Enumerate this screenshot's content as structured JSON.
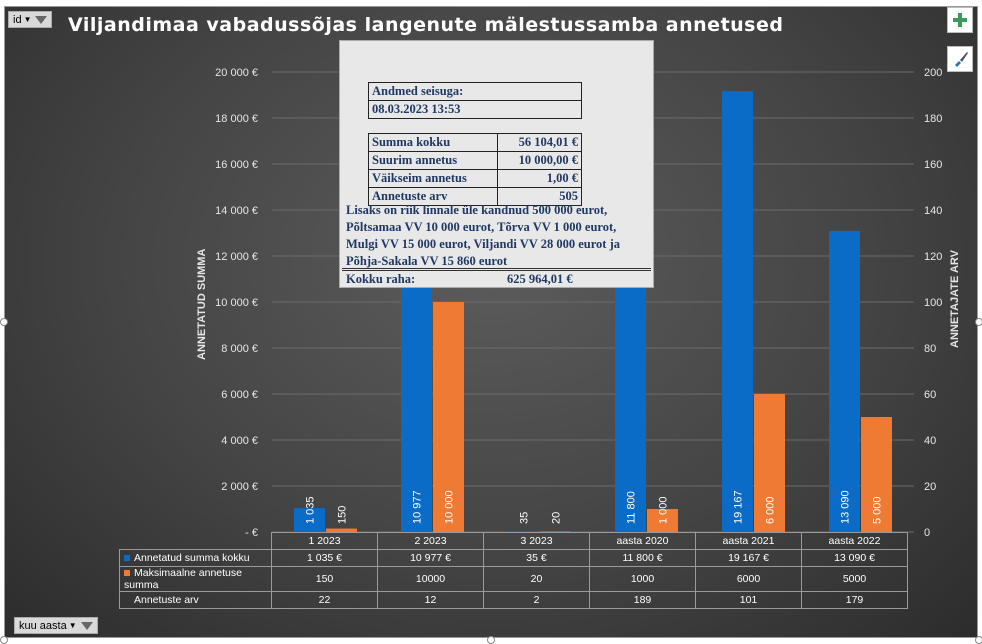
{
  "chart_title": "Viljandimaa vabadussõjas langenute mälestussamba annetused",
  "filters": {
    "top_label": "id",
    "bottom_label": "kuu aasta"
  },
  "y_left_title": "ANNETATUD SUMMA",
  "y_right_title": "ANNETAJATE ARV",
  "info": {
    "as_of_label": "Andmed seisuga:",
    "as_of_value": "08.03.2023 13:53",
    "rows": [
      {
        "label": "Summa kokku",
        "value": "56 104,01 €"
      },
      {
        "label": "Suurim annetus",
        "value": "10 000,00 €"
      },
      {
        "label": "Väikseim annetus",
        "value": "1,00 €"
      },
      {
        "label": "Annetuste arv",
        "value": "505"
      }
    ],
    "note_lines": [
      "Lisaks on riik linnale üle kandnud 500 000 eurot,",
      "Põltsamaa VV 10 000 eurot, Tõrva VV 1 000 eurot,",
      "Mulgi VV 15 000 eurot, Viljandi VV 28 000 eurot ja",
      "Põhja-Sakala VV 15 860 eurot"
    ],
    "total_label": "Kokku raha:",
    "total_value": "625 964,01 €"
  },
  "chart_data": {
    "type": "bar",
    "categories": [
      "1 2023",
      "2 2023",
      "3 2023",
      "aasta 2020",
      "aasta 2021",
      "aasta 2022"
    ],
    "series": [
      {
        "name": "Annetatud summa kokku",
        "values": [
          1035,
          10977,
          35,
          11800,
          19167,
          13090
        ],
        "labels": [
          "1 035",
          "10 977",
          "35",
          "11 800",
          "19 167",
          "13 090"
        ],
        "color": "#0a6cc7",
        "axis": "left"
      },
      {
        "name": "Maksimaalne annetuse summa",
        "values": [
          150,
          10000,
          20,
          1000,
          6000,
          5000
        ],
        "labels": [
          "150",
          "10 000",
          "20",
          "1 000",
          "6 000",
          "5 000"
        ],
        "color": "#ee7a34",
        "axis": "left"
      },
      {
        "name": "Annetuste arv",
        "values": [
          22,
          12,
          2,
          189,
          101,
          179
        ],
        "axis": "right"
      }
    ],
    "ylabel_left": "ANNETATUD SUMMA",
    "ylabel_right": "ANNETAJATE ARV",
    "ylim_left": [
      0,
      20000
    ],
    "ylim_right": [
      0,
      200
    ],
    "yticks_left": [
      "-   €",
      "2 000 €",
      "4 000 €",
      "6 000 €",
      "8 000 €",
      "10 000 €",
      "12 000 €",
      "14 000 €",
      "16 000 €",
      "18 000 €",
      "20 000 €"
    ],
    "yticks_right": [
      "0",
      "20",
      "40",
      "60",
      "80",
      "100",
      "120",
      "140",
      "160",
      "180",
      "200"
    ],
    "grid": true
  },
  "table": {
    "rows": [
      {
        "label": "Annetatud summa kokku",
        "color": "#0a6cc7",
        "cells": [
          "1 035 €",
          "10 977 €",
          "35 €",
          "11 800 €",
          "19 167 €",
          "13 090 €"
        ]
      },
      {
        "label": "Maksimaalne annetuse summa",
        "color": "#ee7a34",
        "cells": [
          "150",
          "10000",
          "20",
          "1000",
          "6000",
          "5000"
        ]
      },
      {
        "label": "Annetuste arv",
        "color": "",
        "cells": [
          "22",
          "12",
          "2",
          "189",
          "101",
          "179"
        ]
      }
    ]
  }
}
